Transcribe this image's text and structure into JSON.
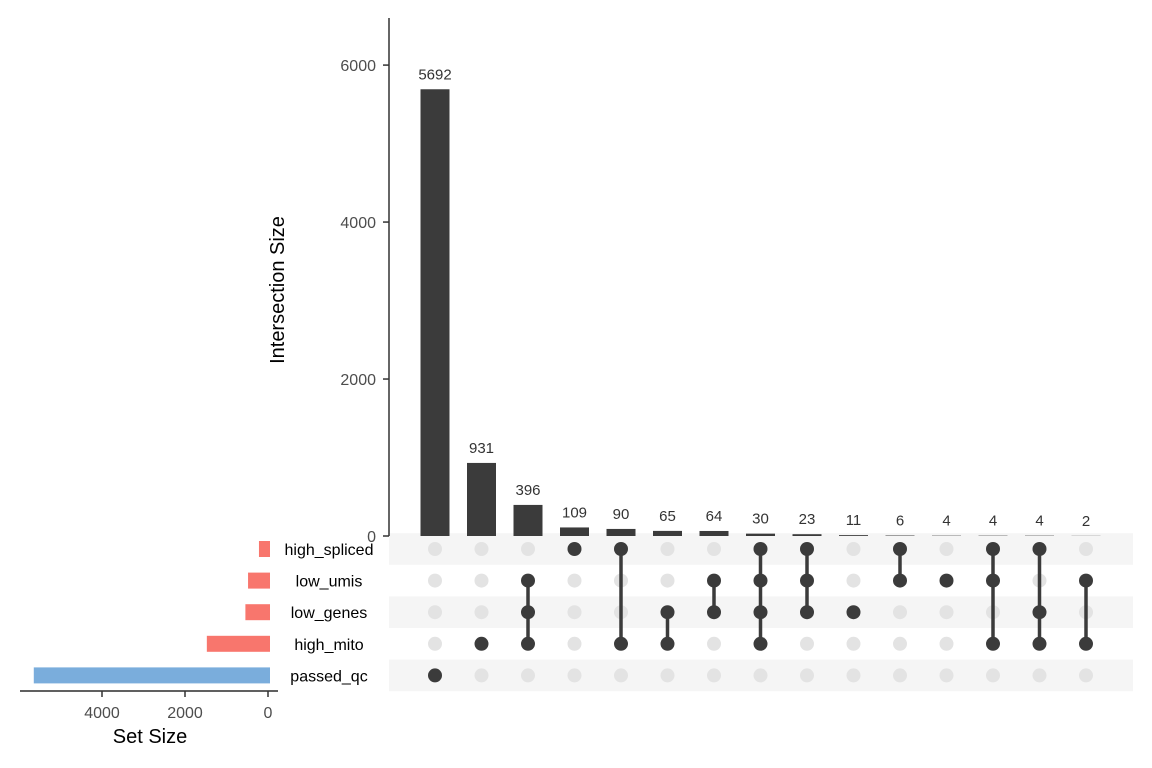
{
  "chart_data": {
    "type": "bar",
    "subtype": "upset",
    "ylabel": "Intersection Size",
    "ylim": [
      0,
      6600
    ],
    "yticks": [
      "0",
      "2000",
      "4000",
      "6000"
    ],
    "sets": [
      "high_spliced",
      "low_umis",
      "low_genes",
      "high_mito",
      "passed_qc"
    ],
    "set_sizes": [
      266,
      529,
      593,
      1522,
      5692
    ],
    "set_colors": [
      "#F8766D",
      "#F8766D",
      "#F8766D",
      "#F8766D",
      "#7AADDC"
    ],
    "set_size_label": "Set Size",
    "set_size_xlim": [
      0,
      5800
    ],
    "set_size_ticks": [
      "4000",
      "2000",
      "0"
    ],
    "intersections": [
      {
        "label": "5692",
        "value": 5692,
        "sets": [
          "passed_qc"
        ]
      },
      {
        "label": "931",
        "value": 931,
        "sets": [
          "high_mito"
        ]
      },
      {
        "label": "396",
        "value": 396,
        "sets": [
          "low_umis",
          "low_genes",
          "high_mito"
        ]
      },
      {
        "label": "109",
        "value": 109,
        "sets": [
          "high_spliced"
        ]
      },
      {
        "label": "90",
        "value": 90,
        "sets": [
          "high_spliced",
          "high_mito"
        ]
      },
      {
        "label": "65",
        "value": 65,
        "sets": [
          "low_genes",
          "high_mito"
        ]
      },
      {
        "label": "64",
        "value": 64,
        "sets": [
          "low_umis",
          "low_genes"
        ]
      },
      {
        "label": "30",
        "value": 30,
        "sets": [
          "high_spliced",
          "low_umis",
          "low_genes",
          "high_mito"
        ]
      },
      {
        "label": "23",
        "value": 23,
        "sets": [
          "high_spliced",
          "low_umis",
          "low_genes"
        ]
      },
      {
        "label": "11",
        "value": 11,
        "sets": [
          "low_genes"
        ]
      },
      {
        "label": "6",
        "value": 6,
        "sets": [
          "high_spliced",
          "low_umis"
        ]
      },
      {
        "label": "4",
        "value": 4,
        "sets": [
          "low_umis"
        ]
      },
      {
        "label": "4",
        "value": 4,
        "sets": [
          "high_spliced",
          "low_umis",
          "high_mito"
        ]
      },
      {
        "label": "4",
        "value": 4,
        "sets": [
          "high_spliced",
          "low_genes",
          "high_mito"
        ]
      },
      {
        "label": "2",
        "value": 2,
        "sets": [
          "low_umis",
          "high_mito"
        ]
      }
    ],
    "colors": {
      "bar": "#3b3b3b",
      "dot_on": "#3b3b3b",
      "dot_off": "#e3e3e3",
      "stripe": "#f5f5f5"
    }
  }
}
